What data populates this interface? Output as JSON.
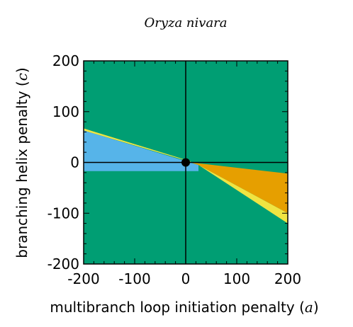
{
  "chart_data": {
    "type": "area",
    "title": "Oryza nivara",
    "xlabel": "multibranch loop initiation penalty",
    "xlabel_symbol": "a",
    "ylabel": "branching helix penalty",
    "ylabel_symbol": "c",
    "xlim": [
      -200,
      200
    ],
    "ylim": [
      -200,
      200
    ],
    "x_ticks": [
      -200,
      -100,
      0,
      100,
      200
    ],
    "y_ticks": [
      200,
      100,
      0,
      -100,
      -200
    ],
    "x_tick_labels": [
      "-200",
      "-100",
      "0",
      "100",
      "200"
    ],
    "y_tick_labels": [
      "200",
      "100",
      "0",
      "-100",
      "-200"
    ],
    "reference_lines": {
      "x": 0,
      "y": 0
    },
    "marker_point": {
      "x": 0,
      "y": 0
    },
    "background_color": "#009e73",
    "regions": [
      {
        "color": "#56b4e9",
        "polygon": [
          [
            -200,
            63
          ],
          [
            -200,
            -17
          ],
          [
            25,
            -17
          ],
          [
            25,
            -5
          ]
        ]
      },
      {
        "color": "#e69f00",
        "polygon": [
          [
            10,
            0
          ],
          [
            200,
            -22
          ],
          [
            200,
            -100
          ],
          [
            25,
            -5
          ]
        ]
      },
      {
        "color": "#f0e442",
        "polygon": [
          [
            25,
            -5
          ],
          [
            200,
            -100
          ],
          [
            200,
            -120
          ]
        ]
      },
      {
        "color": "#f0e442",
        "polygon": [
          [
            -200,
            67
          ],
          [
            -200,
            63
          ],
          [
            10,
            1
          ],
          [
            10,
            2
          ]
        ]
      }
    ]
  }
}
